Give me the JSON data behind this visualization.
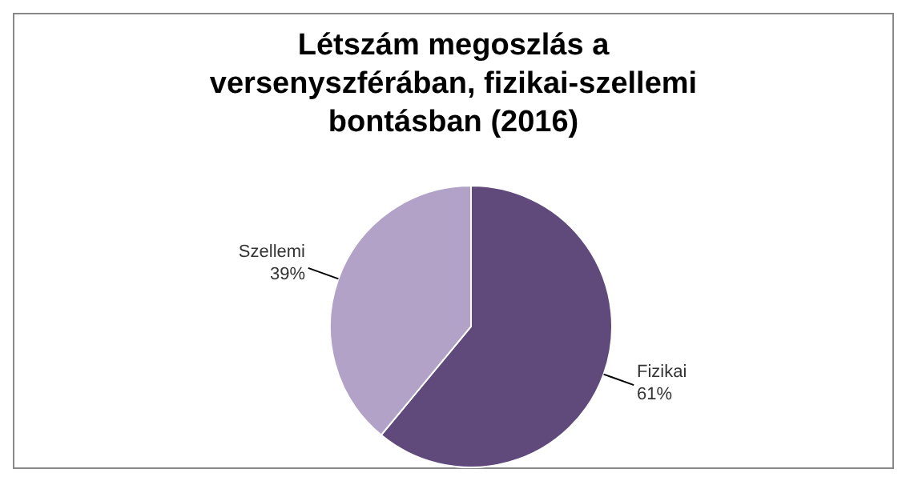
{
  "chart_data": {
    "type": "pie",
    "title": "Létszám megoszlás a versenyszférában, fizikai-szellemi bontásban (2016)",
    "categories": [
      "Fizikai",
      "Szellemi"
    ],
    "values": [
      61,
      39
    ],
    "value_labels": [
      "61%",
      "39%"
    ],
    "colors": [
      "#604a7b",
      "#b3a2c7"
    ],
    "legend": false
  }
}
